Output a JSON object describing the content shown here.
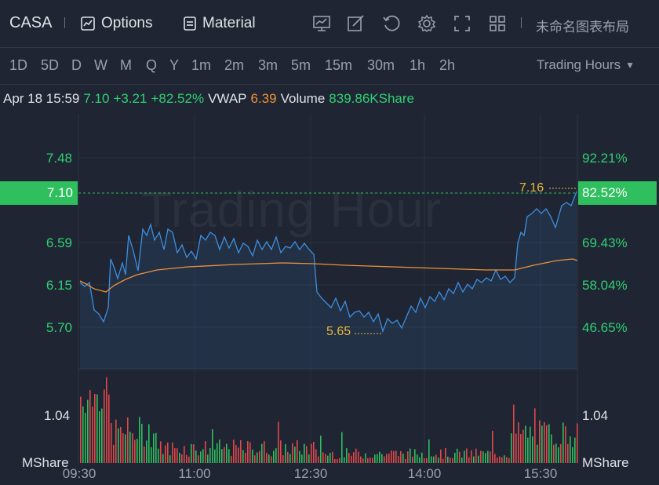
{
  "header": {
    "ticker": "CASA",
    "options_label": "Options",
    "material_label": "Material",
    "layout_name": "未命名图表布局",
    "tools": [
      "chart-template-icon",
      "draw-icon",
      "replay-icon",
      "settings-icon",
      "fullscreen-icon",
      "grid-layout-icon"
    ]
  },
  "timeframes": {
    "items": [
      "1D",
      "5D",
      "D",
      "W",
      "M",
      "Q",
      "Y",
      "1m",
      "2m",
      "3m",
      "5m",
      "15m",
      "30m",
      "1h",
      "2h"
    ],
    "active": "1D",
    "hours_label": "Trading Hours"
  },
  "quote": {
    "datetime": "Apr 18 15:59",
    "price": "7.10",
    "change": "+3.21",
    "change_pct": "+82.52%",
    "vwap_label": "VWAP",
    "vwap": "6.39",
    "volume_label": "Volume",
    "volume": "839.86KShare"
  },
  "chart": {
    "watermark": "Trading Hour",
    "current_price_tag": "7.10",
    "current_pct_tag": "82.52%",
    "high_label": "7.16",
    "low_label": "5.65",
    "price_axis": [
      "7.48",
      "6.59",
      "6.15",
      "5.70"
    ],
    "pct_axis": [
      "92.21%",
      "69.43%",
      "58.04%",
      "46.65%"
    ],
    "volume_axis_left": "1.04",
    "volume_axis_right": "1.04",
    "volume_unit_left": "MShare",
    "volume_unit_right": "MShare",
    "time_axis": [
      "09:30",
      "11:00",
      "12:30",
      "14:00",
      "15:30"
    ],
    "colors": {
      "price_line": "#3d8fe0",
      "vwap_line": "#f0913a",
      "up": "#2fbf5e",
      "down": "#e0484a",
      "accent": "#e8b93c"
    }
  },
  "chart_data": {
    "type": "line",
    "x": [
      "09:30",
      "11:00",
      "12:30",
      "14:00",
      "15:30"
    ],
    "series": [],
    "high": 7.16,
    "low": 5.65,
    "last": 7.1,
    "vwap": 6.39
  }
}
